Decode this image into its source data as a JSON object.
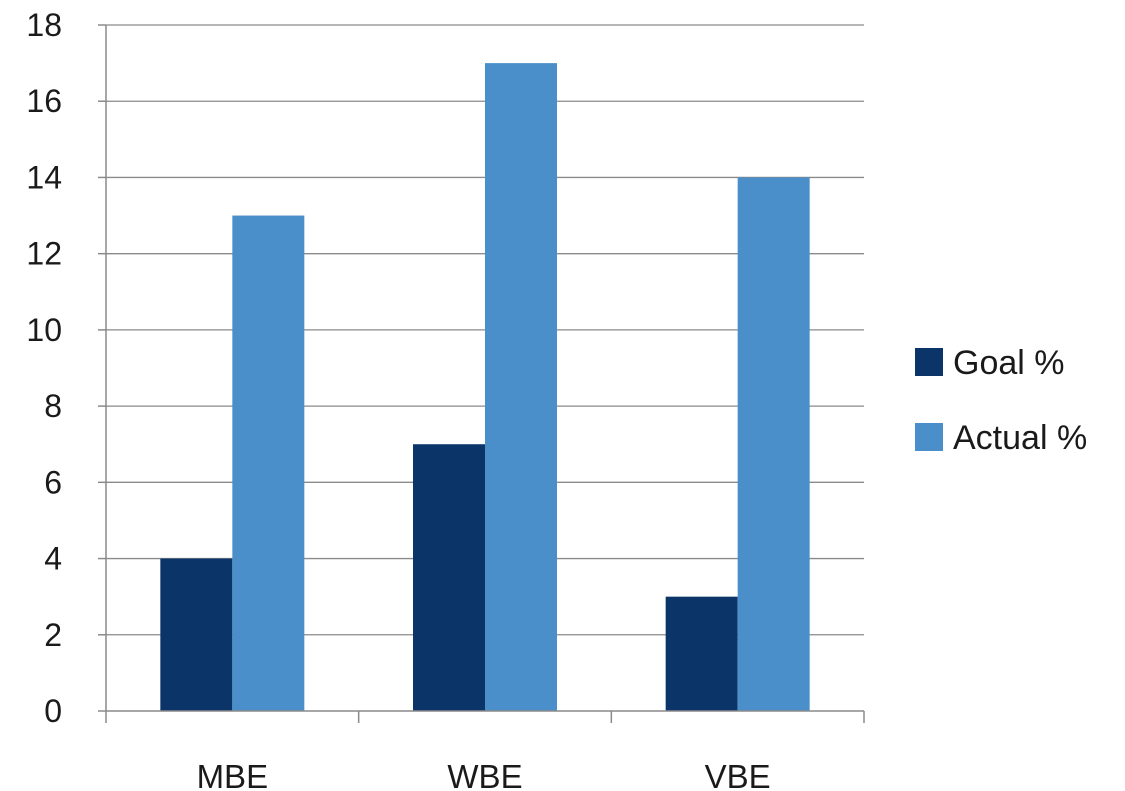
{
  "chart_data": {
    "type": "bar",
    "title": "",
    "xlabel": "",
    "ylabel": "",
    "categories": [
      "MBE",
      "WBE",
      "VBE"
    ],
    "series": [
      {
        "name": "Goal %",
        "values": [
          4,
          7,
          3
        ],
        "color": "#0b3568"
      },
      {
        "name": "Actual %",
        "values": [
          13,
          17,
          14
        ],
        "color": "#4a8fc9"
      }
    ],
    "ylim": [
      0,
      18
    ],
    "yticks": [
      0,
      2,
      4,
      6,
      8,
      10,
      12,
      14,
      16,
      18
    ],
    "grid": true,
    "legend_position": "right"
  }
}
